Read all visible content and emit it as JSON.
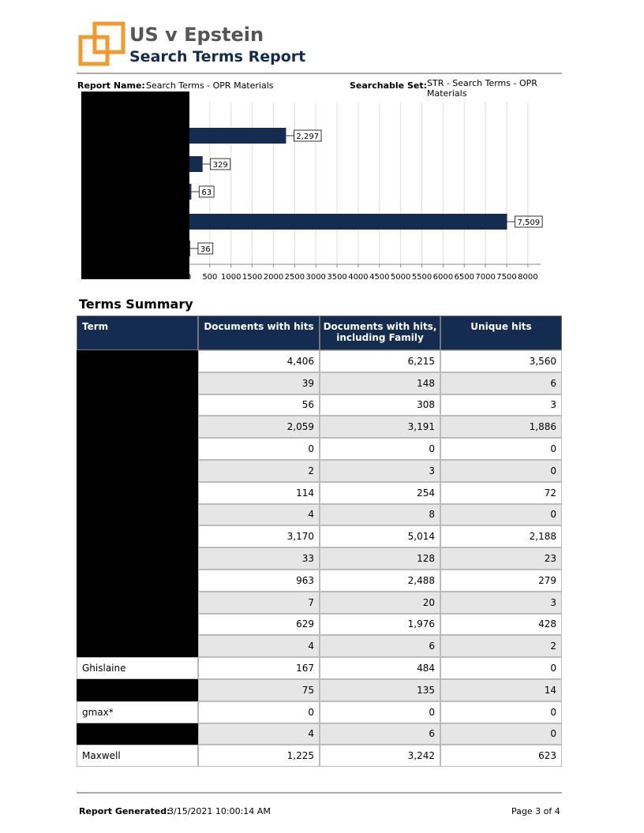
{
  "header": {
    "title": "US v Epstein",
    "subtitle": "Search Terms Report"
  },
  "report_info": {
    "report_name_label": "Report Name:",
    "report_name": "Search Terms - OPR Materials",
    "searchable_set_label": "Searchable Set:",
    "searchable_set": "STR - Search Terms - OPR Materials"
  },
  "chart_data": {
    "type": "bar",
    "orientation": "horizontal",
    "categories": [
      null,
      null,
      null,
      null,
      null
    ],
    "values": [
      2297,
      329,
      63,
      7509,
      36
    ],
    "value_labels": [
      "2,297",
      "329",
      "63",
      "7,509",
      "36"
    ],
    "color": "#132c4f",
    "xlim": [
      0,
      8300
    ],
    "xticks": [
      0,
      500,
      1000,
      1500,
      2000,
      2500,
      3000,
      3500,
      4000,
      4500,
      5000,
      5500,
      6000,
      6500,
      7000,
      7500,
      8000
    ],
    "grid": true
  },
  "table": {
    "title": "Terms Summary",
    "columns": [
      "Term",
      "Documents with hits",
      "Documents with hits, including Family",
      "Unique hits"
    ],
    "rows": [
      [
        null,
        "4,406",
        "6,215",
        "3,560"
      ],
      [
        null,
        "39",
        "148",
        "6"
      ],
      [
        null,
        "56",
        "308",
        "3"
      ],
      [
        null,
        "2,059",
        "3,191",
        "1,886"
      ],
      [
        null,
        "0",
        "0",
        "0"
      ],
      [
        null,
        "2",
        "3",
        "0"
      ],
      [
        null,
        "114",
        "254",
        "72"
      ],
      [
        null,
        "4",
        "8",
        "0"
      ],
      [
        null,
        "3,170",
        "5,014",
        "2,188"
      ],
      [
        null,
        "33",
        "128",
        "23"
      ],
      [
        null,
        "963",
        "2,488",
        "279"
      ],
      [
        null,
        "7",
        "20",
        "3"
      ],
      [
        null,
        "629",
        "1,976",
        "428"
      ],
      [
        null,
        "4",
        "6",
        "2"
      ],
      [
        "Ghislaine",
        "167",
        "484",
        "0"
      ],
      [
        null,
        "75",
        "135",
        "14"
      ],
      [
        "gmax*",
        "0",
        "0",
        "0"
      ],
      [
        null,
        "4",
        "6",
        "0"
      ],
      [
        "Maxwell",
        "1,225",
        "3,242",
        "623"
      ]
    ]
  },
  "footer": {
    "generated_label": "Report Generated:",
    "generated": "3/15/2021 10:00:14 AM",
    "page": "Page 3 of 4"
  }
}
